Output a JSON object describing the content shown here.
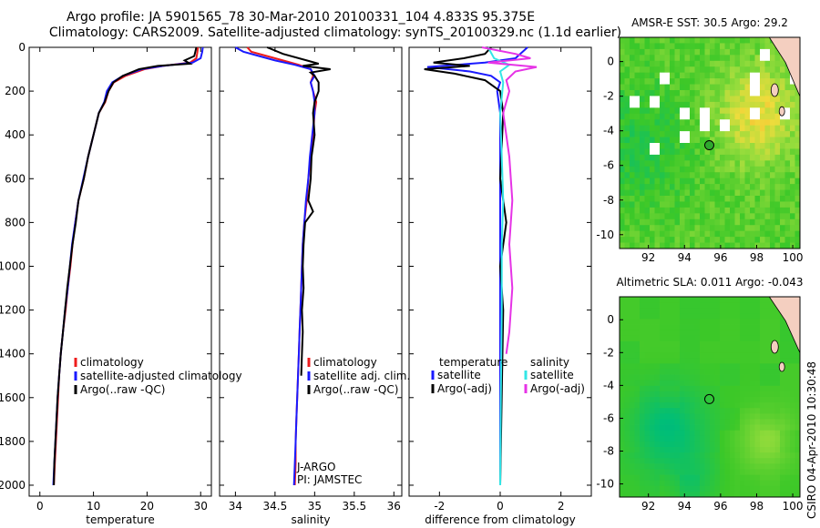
{
  "header": {
    "line1": "Argo profile: JA 5901565_78 30-Mar-2010 20100331_104 4.833S 95.375E",
    "line2": "Climatology: CARS2009. Satellite-adjusted climatology: synTS_20100329.nc (1.1d earlier)"
  },
  "sidebar_stamp": "CSIRO 04-Apr-2010 10:30:48",
  "colors": {
    "red": "#ee1c1c",
    "blue": "#1a1aff",
    "black": "#000000",
    "cyan": "#33e6e6",
    "magenta": "#e633e6"
  },
  "chart_data": [
    {
      "type": "line",
      "name": "temperature",
      "xlabel": "temperature",
      "xlim": [
        -2,
        32
      ],
      "ylim": [
        0,
        2050
      ],
      "y_reversed": true,
      "xticks": [
        "0",
        "10",
        "20",
        "30"
      ],
      "xtick_values": [
        0,
        10,
        20,
        30
      ],
      "yticks": [
        "0",
        "200",
        "400",
        "600",
        "800",
        "1000",
        "1200",
        "1400",
        "1600",
        "1800",
        "2000"
      ],
      "ytick_values": [
        0,
        200,
        400,
        600,
        800,
        1000,
        1200,
        1400,
        1600,
        1800,
        2000
      ],
      "legend": [
        "climatology",
        "satellite-adjusted climatology",
        "Argo(..raw -QC)"
      ],
      "series": [
        {
          "name": "climatology",
          "color": "red",
          "points": [
            [
              29.5,
              0
            ],
            [
              29.4,
              20
            ],
            [
              29.2,
              50
            ],
            [
              28,
              70
            ],
            [
              23,
              85
            ],
            [
              19.5,
              100
            ],
            [
              16,
              130
            ],
            [
              13.8,
              160
            ],
            [
              12.8,
              200
            ],
            [
              12.2,
              250
            ],
            [
              11,
              300
            ],
            [
              10,
              400
            ],
            [
              9,
              500
            ],
            [
              8.2,
              600
            ],
            [
              7.2,
              700
            ],
            [
              6.6,
              800
            ],
            [
              6.1,
              900
            ],
            [
              5.7,
              1000
            ],
            [
              5.2,
              1100
            ],
            [
              4.8,
              1200
            ],
            [
              4.3,
              1300
            ],
            [
              3.9,
              1400
            ],
            [
              3.6,
              1500
            ],
            [
              3.4,
              1600
            ],
            [
              3.2,
              1700
            ],
            [
              3,
              1800
            ],
            [
              2.8,
              1900
            ],
            [
              2.6,
              2000
            ]
          ]
        },
        {
          "name": "satellite-adjusted climatology",
          "color": "blue",
          "points": [
            [
              30.4,
              0
            ],
            [
              30.3,
              20
            ],
            [
              30,
              50
            ],
            [
              28.5,
              70
            ],
            [
              23,
              85
            ],
            [
              19,
              100
            ],
            [
              15.5,
              130
            ],
            [
              13.5,
              160
            ],
            [
              12.5,
              200
            ],
            [
              12,
              250
            ],
            [
              11,
              300
            ],
            [
              10,
              400
            ],
            [
              9,
              500
            ],
            [
              8.1,
              600
            ],
            [
              7.2,
              700
            ],
            [
              6.6,
              800
            ],
            [
              6,
              900
            ],
            [
              5.6,
              1000
            ],
            [
              5.2,
              1100
            ],
            [
              4.7,
              1200
            ],
            [
              4.3,
              1300
            ],
            [
              3.9,
              1400
            ],
            [
              3.6,
              1500
            ],
            [
              3.3,
              1600
            ],
            [
              3.1,
              1700
            ],
            [
              2.9,
              1800
            ],
            [
              2.7,
              1900
            ],
            [
              2.5,
              2000
            ]
          ]
        },
        {
          "name": "Argo(..raw -QC)",
          "color": "black",
          "points": [
            [
              29.2,
              0
            ],
            [
              29,
              20
            ],
            [
              28.8,
              40
            ],
            [
              27,
              60
            ],
            [
              28,
              75
            ],
            [
              22,
              85
            ],
            [
              18.5,
              100
            ],
            [
              15.5,
              130
            ],
            [
              13.7,
              160
            ],
            [
              12.8,
              200
            ],
            [
              12.1,
              250
            ],
            [
              11,
              300
            ],
            [
              10,
              400
            ],
            [
              9,
              500
            ],
            [
              8.2,
              600
            ],
            [
              7.2,
              700
            ],
            [
              6.7,
              800
            ],
            [
              6.1,
              900
            ],
            [
              5.6,
              1000
            ],
            [
              5.1,
              1100
            ],
            [
              4.7,
              1200
            ],
            [
              4.3,
              1300
            ],
            [
              3.9,
              1400
            ],
            [
              3.6,
              1500
            ],
            [
              3.3,
              1600
            ],
            [
              3.1,
              1700
            ],
            [
              2.9,
              1800
            ],
            [
              2.7,
              1900
            ],
            [
              2.6,
              2000
            ]
          ]
        }
      ]
    },
    {
      "type": "line",
      "name": "salinity",
      "xlabel": "salinity",
      "xlim": [
        33.8,
        36.1
      ],
      "ylim": [
        0,
        2050
      ],
      "y_reversed": true,
      "xticks": [
        "34",
        "34.5",
        "35",
        "35.5",
        "36"
      ],
      "xtick_values": [
        34,
        34.5,
        35,
        35.5,
        36
      ],
      "legend": [
        "climatology",
        "satellite adj. clim.",
        "Argo(..raw -QC)"
      ],
      "annotations": [
        "J-ARGO",
        "PI: JAMSTEC"
      ],
      "series": [
        {
          "name": "climatology",
          "color": "red",
          "points": [
            [
              34.15,
              0
            ],
            [
              34.2,
              20
            ],
            [
              34.4,
              40
            ],
            [
              34.6,
              60
            ],
            [
              34.8,
              80
            ],
            [
              34.95,
              100
            ],
            [
              34.98,
              130
            ],
            [
              34.95,
              160
            ],
            [
              34.98,
              200
            ],
            [
              35.02,
              250
            ],
            [
              35.0,
              300
            ],
            [
              34.98,
              400
            ],
            [
              34.95,
              500
            ],
            [
              34.92,
              600
            ],
            [
              34.9,
              700
            ],
            [
              34.87,
              800
            ],
            [
              34.85,
              900
            ],
            [
              34.84,
              1000
            ],
            [
              34.83,
              1100
            ],
            [
              34.82,
              1200
            ],
            [
              34.81,
              1300
            ],
            [
              34.8,
              1400
            ],
            [
              34.79,
              1500
            ],
            [
              34.78,
              1600
            ],
            [
              34.77,
              1700
            ],
            [
              34.76,
              1800
            ],
            [
              34.76,
              1900
            ],
            [
              34.75,
              2000
            ]
          ]
        },
        {
          "name": "satellite adj. clim.",
          "color": "blue",
          "points": [
            [
              34.0,
              0
            ],
            [
              34.1,
              20
            ],
            [
              34.3,
              40
            ],
            [
              34.5,
              60
            ],
            [
              34.75,
              80
            ],
            [
              34.95,
              100
            ],
            [
              35.0,
              130
            ],
            [
              34.95,
              160
            ],
            [
              34.98,
              200
            ],
            [
              35.0,
              250
            ],
            [
              35.0,
              300
            ],
            [
              34.97,
              400
            ],
            [
              34.94,
              500
            ],
            [
              34.92,
              600
            ],
            [
              34.89,
              700
            ],
            [
              34.87,
              800
            ],
            [
              34.85,
              900
            ],
            [
              34.84,
              1000
            ],
            [
              34.83,
              1100
            ],
            [
              34.82,
              1200
            ],
            [
              34.81,
              1300
            ],
            [
              34.8,
              1400
            ],
            [
              34.79,
              1500
            ],
            [
              34.78,
              1600
            ],
            [
              34.77,
              1700
            ],
            [
              34.76,
              1800
            ],
            [
              34.75,
              1900
            ],
            [
              34.74,
              2000
            ]
          ]
        },
        {
          "name": "Argo(..raw -QC)",
          "color": "black",
          "points": [
            [
              34.4,
              0
            ],
            [
              34.6,
              30
            ],
            [
              34.9,
              60
            ],
            [
              35.05,
              75
            ],
            [
              34.85,
              85
            ],
            [
              35.2,
              100
            ],
            [
              34.95,
              115
            ],
            [
              35.0,
              130
            ],
            [
              35.05,
              160
            ],
            [
              35.05,
              200
            ],
            [
              35.0,
              250
            ],
            [
              34.98,
              300
            ],
            [
              35.0,
              400
            ],
            [
              34.96,
              500
            ],
            [
              34.95,
              600
            ],
            [
              34.92,
              700
            ],
            [
              34.98,
              750
            ],
            [
              34.88,
              800
            ],
            [
              34.86,
              900
            ],
            [
              34.85,
              1000
            ],
            [
              34.86,
              1100
            ],
            [
              34.84,
              1200
            ],
            [
              34.85,
              1300
            ],
            [
              34.84,
              1400
            ],
            [
              34.83,
              1500
            ]
          ]
        }
      ]
    },
    {
      "type": "line",
      "name": "difference",
      "xlabel": "difference from climatology",
      "xlim": [
        -3.0,
        3.0
      ],
      "ylim": [
        0,
        2050
      ],
      "y_reversed": true,
      "xticks": [
        "-2",
        "0",
        "2"
      ],
      "xtick_values": [
        -2,
        0,
        2
      ],
      "legend_left_title": "temperature",
      "legend_right_title": "salinity",
      "legend_left": [
        "satellite",
        "Argo(-adj)"
      ],
      "legend_right": [
        "satellite",
        "Argo(-adj)"
      ],
      "series": [
        {
          "name": "temperature satellite",
          "color": "blue",
          "points": [
            [
              0.9,
              0
            ],
            [
              0.5,
              50
            ],
            [
              -0.5,
              70
            ],
            [
              -2.4,
              90
            ],
            [
              -1.0,
              110
            ],
            [
              -0.3,
              130
            ],
            [
              0,
              160
            ],
            [
              -0.1,
              200
            ],
            [
              0,
              300
            ],
            [
              0,
              500
            ],
            [
              0,
              800
            ],
            [
              0,
              1200
            ],
            [
              0,
              1600
            ],
            [
              0,
              2000
            ]
          ]
        },
        {
          "name": "temperature Argo(-adj)",
          "color": "black",
          "points": [
            [
              -0.3,
              0
            ],
            [
              -0.5,
              30
            ],
            [
              -1.2,
              50
            ],
            [
              -2.2,
              70
            ],
            [
              -1,
              85
            ],
            [
              -2.5,
              100
            ],
            [
              -1.5,
              120
            ],
            [
              -0.5,
              150
            ],
            [
              0,
              200
            ],
            [
              0.1,
              300
            ],
            [
              0,
              600
            ],
            [
              0.2,
              800
            ],
            [
              0,
              1000
            ],
            [
              0.1,
              1200
            ],
            [
              0,
              2000
            ]
          ]
        },
        {
          "name": "salinity satellite",
          "color": "cyan",
          "points": [
            [
              -0.4,
              0
            ],
            [
              -0.2,
              50
            ],
            [
              0.3,
              80
            ],
            [
              0,
              110
            ],
            [
              0.1,
              160
            ],
            [
              0,
              300
            ],
            [
              0.05,
              500
            ],
            [
              0.1,
              700
            ],
            [
              0.05,
              900
            ],
            [
              0.05,
              1200
            ],
            [
              0.02,
              1600
            ],
            [
              0,
              2000
            ]
          ]
        },
        {
          "name": "salinity Argo(-adj)",
          "color": "magenta",
          "points": [
            [
              -0.6,
              0
            ],
            [
              0.5,
              30
            ],
            [
              1.0,
              50
            ],
            [
              -0.4,
              70
            ],
            [
              1.2,
              90
            ],
            [
              0.5,
              110
            ],
            [
              0.2,
              150
            ],
            [
              0.3,
              200
            ],
            [
              0.1,
              300
            ],
            [
              0.3,
              500
            ],
            [
              0.4,
              700
            ],
            [
              0.3,
              900
            ],
            [
              0.4,
              1100
            ],
            [
              0.3,
              1300
            ],
            [
              0.2,
              1400
            ]
          ]
        }
      ]
    },
    {
      "type": "heatmap",
      "name": "sst_map",
      "title": "AMSR-E SST: 30.5 Argo: 29.2",
      "xlim": [
        90.4,
        100.4
      ],
      "ylim": [
        -10.8,
        1.4
      ],
      "xticks": [
        "92",
        "94",
        "96",
        "98",
        "100"
      ],
      "xtick_values": [
        92,
        94,
        96,
        98,
        100
      ],
      "yticks": [
        "0",
        "-2",
        "-4",
        "-6",
        "-8",
        "-10"
      ],
      "ytick_values": [
        0,
        -2,
        -4,
        -6,
        -8,
        -10
      ],
      "marker": [
        95.375,
        -4.833
      ]
    },
    {
      "type": "heatmap",
      "name": "sla_map",
      "title": "Altimetric SLA: 0.011 Argo: -0.043",
      "xlim": [
        90.4,
        100.4
      ],
      "ylim": [
        -10.8,
        1.4
      ],
      "xticks": [
        "92",
        "94",
        "96",
        "98",
        "100"
      ],
      "xtick_values": [
        92,
        94,
        96,
        98,
        100
      ],
      "yticks": [
        "0",
        "-2",
        "-4",
        "-6",
        "-8",
        "-10"
      ],
      "ytick_values": [
        0,
        -2,
        -4,
        -6,
        -8,
        -10
      ],
      "marker": [
        95.375,
        -4.833
      ]
    }
  ]
}
